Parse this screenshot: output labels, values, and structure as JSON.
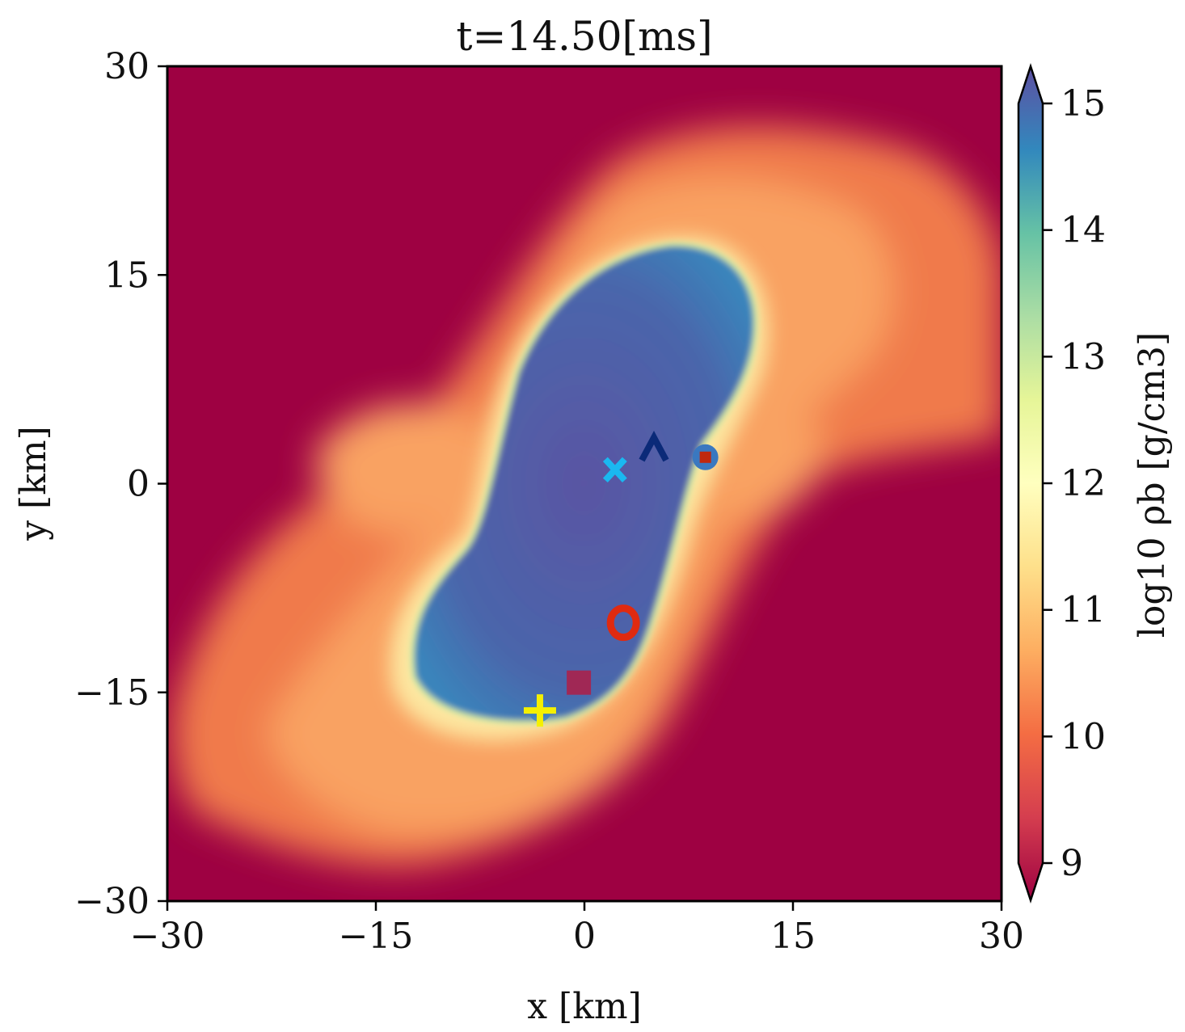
{
  "chart_data": {
    "type": "heatmap",
    "title": "t=14.50[ms]",
    "xlabel": "x [km]",
    "ylabel": "y [km]",
    "xlim": [
      -30,
      30
    ],
    "ylim": [
      -30,
      30
    ],
    "xticks": [
      -30,
      -15,
      0,
      15,
      30
    ],
    "yticks": [
      -30,
      -15,
      0,
      15,
      30
    ],
    "xtick_labels": [
      "−30",
      "−15",
      "0",
      "15",
      "30"
    ],
    "ytick_labels": [
      "−30",
      "−15",
      "0",
      "15",
      "30"
    ],
    "colorbar": {
      "label": "log10 ρb [g/cm3]",
      "range": [
        9,
        15
      ],
      "ticks": [
        9,
        10,
        11,
        12,
        13,
        14,
        15
      ],
      "tick_labels": [
        "9",
        "10",
        "11",
        "12",
        "13",
        "14",
        "15"
      ],
      "colormap": "Spectral",
      "extend": "both",
      "colors": [
        "#9e0142",
        "#d53e4f",
        "#f46d43",
        "#fdae61",
        "#fee08b",
        "#ffffbf",
        "#e6f598",
        "#abdda4",
        "#66c2a5",
        "#3288bd",
        "#5e4fa2"
      ]
    },
    "markers": [
      {
        "symbol": "^",
        "x": 5.0,
        "y": 2.5,
        "color": "#0b2a78"
      },
      {
        "symbol": "x",
        "x": 2.2,
        "y": 1.0,
        "color": "#1ab8f0"
      },
      {
        "symbol": "circle+square",
        "x": 8.7,
        "y": 1.9,
        "color": "#3a78c0"
      },
      {
        "symbol": "o",
        "x": 2.8,
        "y": -10.0,
        "color": "#e02a10"
      },
      {
        "symbol": "square",
        "x": -0.4,
        "y": -14.3,
        "color": "#a02855"
      },
      {
        "symbol": "+",
        "x": -3.2,
        "y": -16.3,
        "color": "#f5f000"
      }
    ],
    "grid": false
  }
}
